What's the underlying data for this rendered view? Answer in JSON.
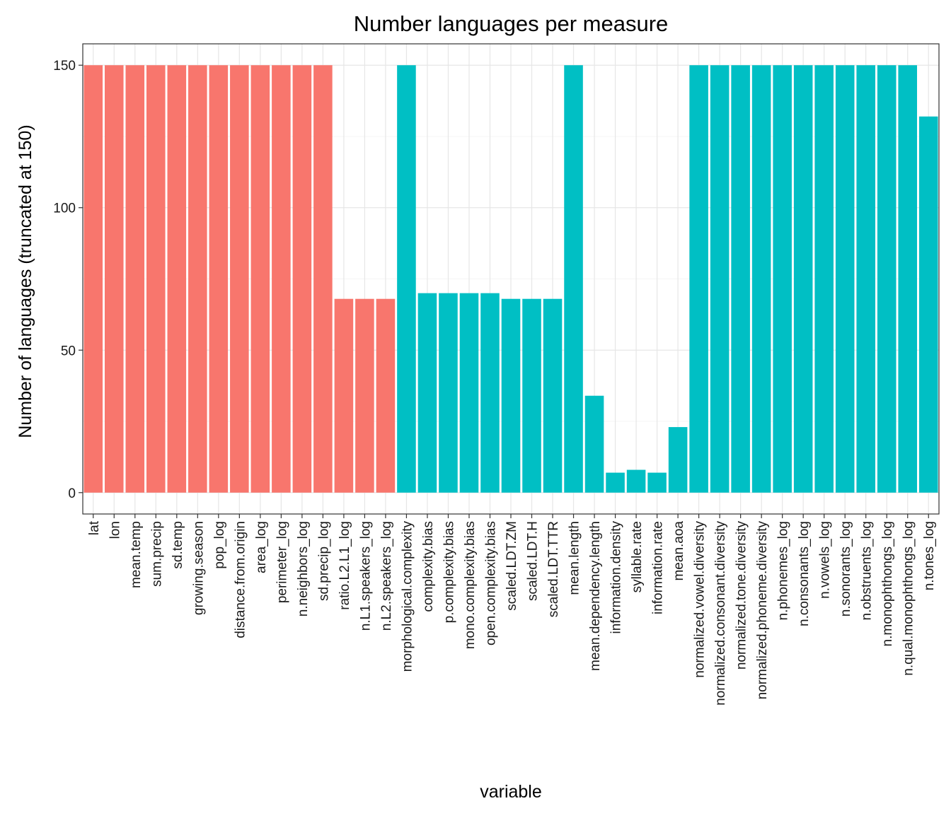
{
  "chart_data": {
    "type": "bar",
    "title": "Number languages per measure",
    "xlabel": "variable",
    "ylabel": "Number of languages (truncated at 150)",
    "ylim": [
      -7.5,
      157.5
    ],
    "yticks": [
      0,
      50,
      100,
      150
    ],
    "grid": true,
    "colors": {
      "group1": "#F8766D",
      "group2": "#00BFC4"
    },
    "categories": [
      "lat",
      "lon",
      "mean.temp",
      "sum.precip",
      "sd.temp",
      "growing.season",
      "pop_log",
      "distance.from.origin",
      "area_log",
      "perimeter_log",
      "n.neighbors_log",
      "sd.precip_log",
      "ratio.L2.L1_log",
      "n.L1.speakers_log",
      "n.L2.speakers_log",
      "morphological.complexity",
      "complexity.bias",
      "p.complexity.bias",
      "mono.complexity.bias",
      "open.complexity.bias",
      "scaled.LDT.ZM",
      "scaled.LDT.H",
      "scaled.LDT.TTR",
      "mean.length",
      "mean.dependency.length",
      "information.density",
      "syllable.rate",
      "information.rate",
      "mean.aoa",
      "normalized.vowel.diversity",
      "normalized.consonant.diversity",
      "normalized.tone.diversity",
      "normalized.phoneme.diversity",
      "n.phonemes_log",
      "n.consonants_log",
      "n.vowels_log",
      "n.sonorants_log",
      "n.obstruents_log",
      "n.monophthongs_log",
      "n.qual.monophthongs_log",
      "n.tones_log"
    ],
    "values": [
      150,
      150,
      150,
      150,
      150,
      150,
      150,
      150,
      150,
      150,
      150,
      150,
      68,
      68,
      68,
      150,
      70,
      70,
      70,
      70,
      68,
      68,
      68,
      150,
      34,
      7,
      8,
      7,
      23,
      150,
      150,
      150,
      150,
      150,
      150,
      150,
      150,
      150,
      150,
      150,
      132
    ],
    "groups": [
      "group1",
      "group1",
      "group1",
      "group1",
      "group1",
      "group1",
      "group1",
      "group1",
      "group1",
      "group1",
      "group1",
      "group1",
      "group1",
      "group1",
      "group1",
      "group2",
      "group2",
      "group2",
      "group2",
      "group2",
      "group2",
      "group2",
      "group2",
      "group2",
      "group2",
      "group2",
      "group2",
      "group2",
      "group2",
      "group2",
      "group2",
      "group2",
      "group2",
      "group2",
      "group2",
      "group2",
      "group2",
      "group2",
      "group2",
      "group2",
      "group2"
    ]
  }
}
